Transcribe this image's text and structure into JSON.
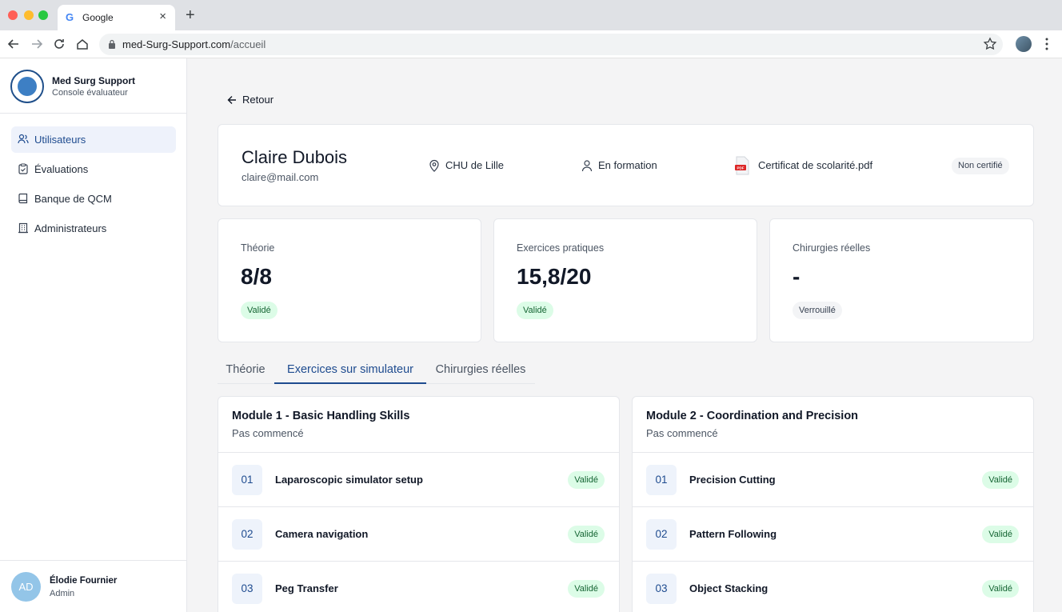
{
  "browser": {
    "tab_title": "Google",
    "url_domain": "med-Surg-Support.com",
    "url_path": "/accueil"
  },
  "sidebar": {
    "brand_name": "Med Surg Support",
    "brand_sub": "Console évaluateur",
    "items": [
      {
        "label": "Utilisateurs",
        "icon": "users-icon",
        "active": true
      },
      {
        "label": "Évaluations",
        "icon": "clipboard-check-icon",
        "active": false
      },
      {
        "label": "Banque de QCM",
        "icon": "book-icon",
        "active": false
      },
      {
        "label": "Administrateurs",
        "icon": "building-icon",
        "active": false
      }
    ],
    "user": {
      "initials": "AD",
      "name": "Élodie Fournier",
      "role": "Admin"
    }
  },
  "main": {
    "back_label": "Retour",
    "profile": {
      "name": "Claire Dubois",
      "email": "claire@mail.com",
      "hospital": "CHU de Lille",
      "status": "En formation",
      "document": "Certificat de scolarité.pdf",
      "certification": "Non certifié"
    },
    "stats": [
      {
        "label": "Théorie",
        "value": "8/8",
        "badge": "Validé"
      },
      {
        "label": "Exercices pratiques",
        "value": "15,8/20",
        "badge": "Validé"
      },
      {
        "label": "Chirurgies réelles",
        "value": "-",
        "badge": "Verrouillé"
      }
    ],
    "tabs": [
      {
        "label": "Théorie",
        "active": false
      },
      {
        "label": "Exercices sur simulateur",
        "active": true
      },
      {
        "label": "Chirurgies réelles",
        "active": false
      }
    ],
    "modules": [
      {
        "title": "Module 1 - Basic Handling Skills",
        "status": "Pas commencé",
        "rows": [
          {
            "num": "01",
            "label": "Laparoscopic simulator setup",
            "badge": "Validé"
          },
          {
            "num": "02",
            "label": "Camera navigation",
            "badge": "Validé"
          },
          {
            "num": "03",
            "label": "Peg Transfer",
            "badge": "Validé"
          }
        ]
      },
      {
        "title": "Module 2 - Coordination and Precision",
        "status": "Pas commencé",
        "rows": [
          {
            "num": "01",
            "label": "Precision Cutting",
            "badge": "Validé"
          },
          {
            "num": "02",
            "label": "Pattern Following",
            "badge": "Validé"
          },
          {
            "num": "03",
            "label": "Object Stacking",
            "badge": "Validé"
          }
        ]
      }
    ]
  },
  "colors": {
    "accent": "#1e4b8f",
    "success_bg": "#dcfce7",
    "success_text": "#166534"
  }
}
